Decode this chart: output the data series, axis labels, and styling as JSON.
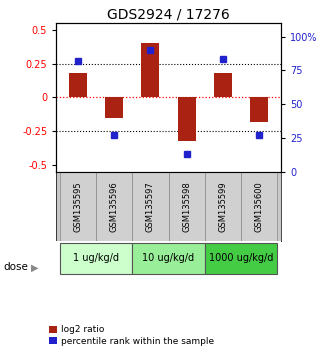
{
  "title": "GDS2924 / 17276",
  "samples": [
    "GSM135595",
    "GSM135596",
    "GSM135597",
    "GSM135598",
    "GSM135599",
    "GSM135600"
  ],
  "log2_ratio": [
    0.18,
    -0.15,
    0.4,
    -0.32,
    0.18,
    -0.18
  ],
  "percentile_rank": [
    82,
    27,
    90,
    13,
    83,
    27
  ],
  "bar_color": "#aa2211",
  "dot_color": "#2222cc",
  "ylim_left": [
    -0.55,
    0.55
  ],
  "ylim_right": [
    0,
    110
  ],
  "yticks_left": [
    -0.5,
    -0.25,
    0,
    0.25,
    0.5
  ],
  "yticks_right": [
    0,
    25,
    50,
    75,
    100
  ],
  "ytick_labels_right": [
    "0",
    "25",
    "50",
    "75",
    "100%"
  ],
  "hlines": [
    0.25,
    -0.25
  ],
  "dose_groups": [
    {
      "label": "1 ug/kg/d",
      "samples": [
        0,
        1
      ],
      "color": "#ccffcc"
    },
    {
      "label": "10 ug/kg/d",
      "samples": [
        2,
        3
      ],
      "color": "#99ee99"
    },
    {
      "label": "1000 ug/kg/d",
      "samples": [
        4,
        5
      ],
      "color": "#44cc44"
    }
  ],
  "dose_label": "dose",
  "legend_red": "log2 ratio",
  "legend_blue": "percentile rank within the sample",
  "title_fontsize": 10,
  "tick_fontsize": 7,
  "bar_width": 0.5
}
